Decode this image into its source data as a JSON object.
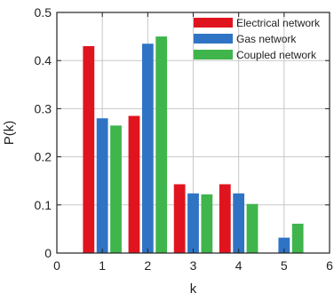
{
  "chart_data": {
    "type": "bar",
    "xlabel": "k",
    "ylabel": "P(k)",
    "xlim": [
      0,
      6
    ],
    "ylim": [
      0,
      0.5
    ],
    "xticks": [
      "0",
      "1",
      "2",
      "3",
      "4",
      "5",
      "6"
    ],
    "yticks": [
      "0",
      "0.1",
      "0.2",
      "0.3",
      "0.4",
      "0.5"
    ],
    "grid": true,
    "legend_position": "top-right",
    "series": [
      {
        "name": "Electrical network",
        "color": "#e0141e",
        "x": [
          1,
          2,
          3,
          4,
          5
        ],
        "values": [
          0.43,
          0.285,
          0.143,
          0.143,
          0
        ]
      },
      {
        "name": "Gas network",
        "color": "#2f74c4",
        "x": [
          1,
          2,
          3,
          4,
          5
        ],
        "values": [
          0.28,
          0.435,
          0.124,
          0.124,
          0.032
        ]
      },
      {
        "name": "Coupled network",
        "color": "#3fb54c",
        "x": [
          1,
          2,
          3,
          4,
          5
        ],
        "values": [
          0.265,
          0.45,
          0.122,
          0.102,
          0.061
        ]
      }
    ]
  }
}
